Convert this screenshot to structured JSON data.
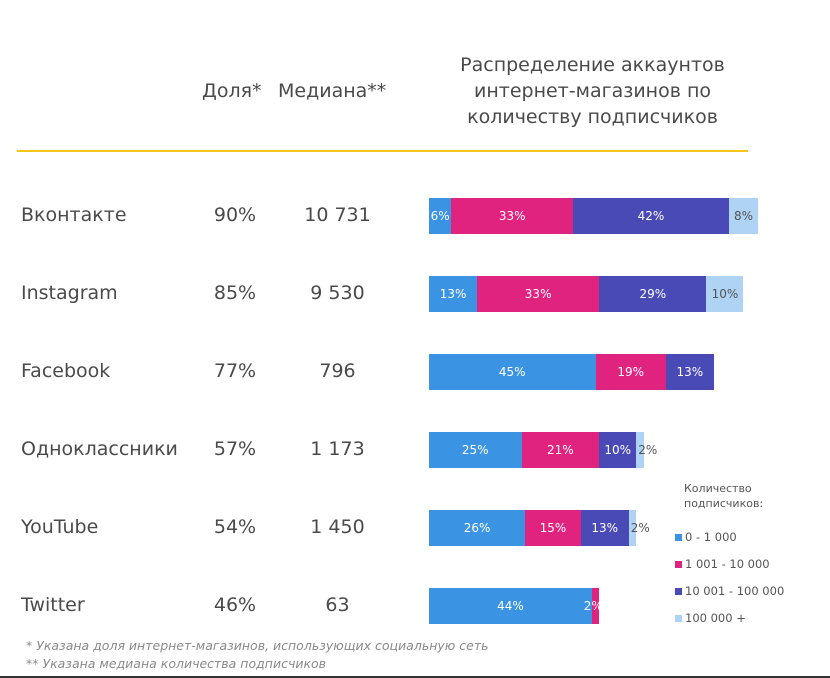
{
  "header": {
    "share_label": "Доля*",
    "median_label": "Медиана**",
    "chart_title_lines": [
      "Распределение аккаунтов",
      "интернет-магазинов по",
      "количеству подписчиков"
    ]
  },
  "colors": {
    "accent_rule": "#f5c518",
    "series": [
      "#3a94e3",
      "#e0237f",
      "#4a4ab6",
      "#aed3f5"
    ]
  },
  "rows": [
    {
      "name": "Вконтакте",
      "share": "90%",
      "median": "10 731"
    },
    {
      "name": "Instagram",
      "share": "85%",
      "median": "9 530"
    },
    {
      "name": "Facebook",
      "share": "77%",
      "median": "796"
    },
    {
      "name": "Одноклассники",
      "share": "57%",
      "median": "1 173"
    },
    {
      "name": "YouTube",
      "share": "54%",
      "median": "1 450"
    },
    {
      "name": "Twitter",
      "share": "46%",
      "median": "63"
    }
  ],
  "chart_data": {
    "type": "bar",
    "orientation": "horizontal",
    "stacked": true,
    "title": "Распределение аккаунтов интернет-магазинов по количеству подписчиков",
    "categories": [
      "Вконтакте",
      "Instagram",
      "Facebook",
      "Одноклассники",
      "YouTube",
      "Twitter"
    ],
    "series": [
      {
        "name": "0 - 1 000",
        "values": [
          6,
          13,
          45,
          25,
          26,
          44
        ]
      },
      {
        "name": "1 001 - 10 000",
        "values": [
          33,
          33,
          19,
          21,
          15,
          2
        ]
      },
      {
        "name": "10 001 - 100 000",
        "values": [
          42,
          29,
          13,
          10,
          13,
          0
        ]
      },
      {
        "name": "100 000 +",
        "values": [
          8,
          10,
          0,
          2,
          2,
          0
        ]
      }
    ],
    "value_suffix": "%",
    "xlabel": "",
    "ylabel": "",
    "xlim": [
      0,
      100
    ],
    "grid": false,
    "legend": {
      "title": "Количество подписчиков:",
      "position": "bottom-right"
    }
  },
  "legend": {
    "title_line1": "Количество",
    "title_line2": "подписчиков:",
    "items": [
      "0 - 1 000",
      "1 001 - 10 000",
      "10 001 - 100 000",
      "100 000 +"
    ]
  },
  "footnotes": [
    "* Указана доля интернет-магазинов, использующих социальную сеть",
    "** Указана медиана количества подписчиков"
  ]
}
